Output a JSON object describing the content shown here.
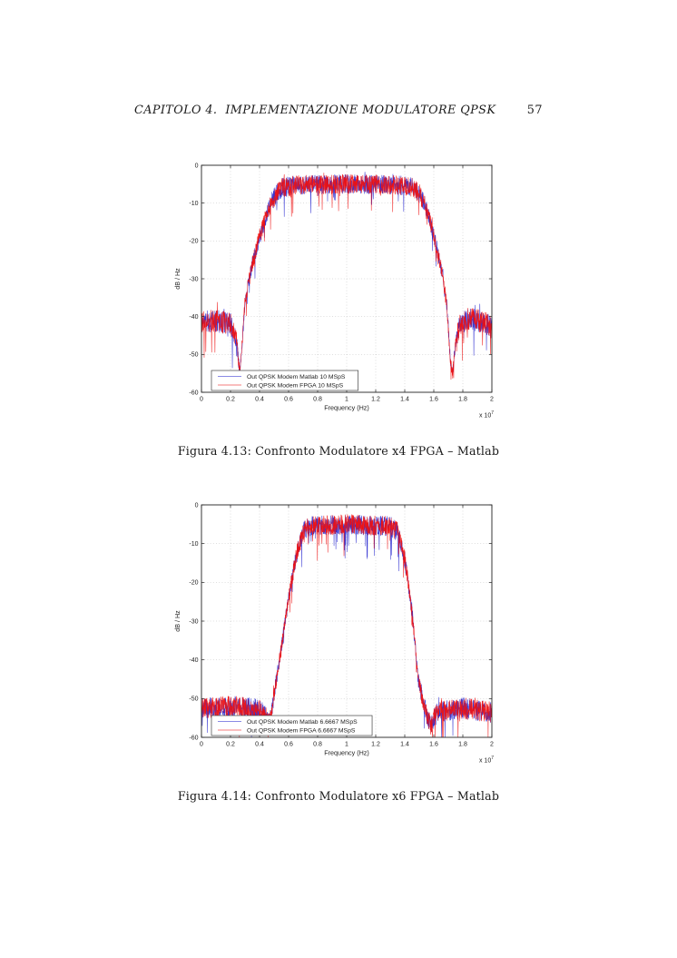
{
  "header": {
    "title": "CAPITOLO 4.  IMPLEMENTAZIONE MODULATORE QPSK",
    "page_number": "57"
  },
  "figures": [
    {
      "caption": "Figura 4.13: Confronto Modulatore x4 FPGA – Matlab"
    },
    {
      "caption": "Figura 4.14: Confronto Modulatore x6 FPGA – Matlab"
    }
  ],
  "chart_data": [
    {
      "type": "line",
      "title": "",
      "xlabel": "Frequency (Hz)",
      "ylabel": "dB / Hz",
      "x_multiplier_label": {
        "base": "x 10",
        "exponent": "7"
      },
      "xlim_units_1e7": [
        0,
        2
      ],
      "xlim_hz": [
        0,
        20000000
      ],
      "ylim": [
        -60,
        0
      ],
      "x_ticks": [
        "0",
        "0.2",
        "0.4",
        "0.6",
        "0.8",
        "1",
        "1.2",
        "1.4",
        "1.6",
        "1.8",
        "2"
      ],
      "y_ticks": [
        "0",
        "-10",
        "-20",
        "-30",
        "-40",
        "-50",
        "-60"
      ],
      "grid": true,
      "legend_position": "lower-left",
      "envelope_dB": [
        [
          0.0,
          -41.5,
          3.0
        ],
        [
          0.1,
          -41.0,
          3.0
        ],
        [
          0.2,
          -42.0,
          3.2
        ],
        [
          0.24,
          -46.0,
          2.5
        ],
        [
          0.265,
          -55.0,
          1.5
        ],
        [
          0.28,
          -47.0,
          1.5
        ],
        [
          0.3,
          -36.0,
          1.8
        ],
        [
          0.35,
          -26.0,
          2.0
        ],
        [
          0.4,
          -19.0,
          2.2
        ],
        [
          0.45,
          -13.0,
          2.4
        ],
        [
          0.5,
          -8.5,
          2.6
        ],
        [
          0.55,
          -6.0,
          2.6
        ],
        [
          0.65,
          -5.2,
          2.6
        ],
        [
          1.0,
          -5.0,
          2.6
        ],
        [
          1.35,
          -5.2,
          2.6
        ],
        [
          1.45,
          -5.8,
          2.6
        ],
        [
          1.5,
          -7.5,
          2.6
        ],
        [
          1.55,
          -11.5,
          2.4
        ],
        [
          1.6,
          -18.5,
          2.2
        ],
        [
          1.65,
          -27.0,
          2.0
        ],
        [
          1.69,
          -37.0,
          1.8
        ],
        [
          1.715,
          -52.0,
          1.5
        ],
        [
          1.73,
          -55.0,
          1.5
        ],
        [
          1.75,
          -47.0,
          2.2
        ],
        [
          1.78,
          -42.0,
          2.8
        ],
        [
          1.85,
          -40.5,
          3.0
        ],
        [
          1.95,
          -41.5,
          3.0
        ],
        [
          2.0,
          -43.0,
          3.0
        ]
      ],
      "series": [
        {
          "name": "Out QPSK Modem Matlab 10 MSpS",
          "color": "#2a2ad0",
          "seed": 11
        },
        {
          "name": "Out QPSK Modem FPGA 10 MSpS",
          "color": "#ee1111",
          "seed": 77
        }
      ]
    },
    {
      "type": "line",
      "title": "",
      "xlabel": "Frequency (Hz)",
      "ylabel": "dB / Hz",
      "x_multiplier_label": {
        "base": "x 10",
        "exponent": "7"
      },
      "xlim_units_1e7": [
        0,
        2
      ],
      "xlim_hz": [
        0,
        20000000
      ],
      "ylim": [
        -60,
        0
      ],
      "x_ticks": [
        "0",
        "0.2",
        "0.4",
        "0.6",
        "0.8",
        "1",
        "1.2",
        "1.4",
        "1.6",
        "1.8",
        "2"
      ],
      "y_ticks": [
        "0",
        "-10",
        "-20",
        "-30",
        "-40",
        "-50",
        "-60"
      ],
      "grid": true,
      "legend_position": "lower-left",
      "envelope_dB": [
        [
          0.0,
          -52.5,
          2.6
        ],
        [
          0.2,
          -52.0,
          2.8
        ],
        [
          0.4,
          -53.0,
          3.0
        ],
        [
          0.44,
          -55.0,
          3.0
        ],
        [
          0.47,
          -56.5,
          2.5
        ],
        [
          0.5,
          -49.0,
          2.0
        ],
        [
          0.55,
          -37.0,
          1.8
        ],
        [
          0.6,
          -24.0,
          2.0
        ],
        [
          0.65,
          -13.5,
          2.2
        ],
        [
          0.7,
          -7.0,
          2.6
        ],
        [
          0.75,
          -5.5,
          2.6
        ],
        [
          1.0,
          -5.0,
          2.6
        ],
        [
          1.3,
          -5.5,
          2.6
        ],
        [
          1.35,
          -7.0,
          2.6
        ],
        [
          1.4,
          -14.0,
          2.4
        ],
        [
          1.45,
          -27.5,
          2.0
        ],
        [
          1.49,
          -44.0,
          1.8
        ],
        [
          1.52,
          -50.0,
          2.2
        ],
        [
          1.55,
          -54.0,
          2.5
        ],
        [
          1.58,
          -57.0,
          2.5
        ],
        [
          1.62,
          -53.5,
          2.6
        ],
        [
          1.8,
          -52.5,
          2.8
        ],
        [
          2.0,
          -53.5,
          2.8
        ]
      ],
      "series": [
        {
          "name": "Out QPSK Modem Matlab 6.6667 MSpS",
          "color": "#2a2ad0",
          "seed": 23
        },
        {
          "name": "Out QPSK Modem FPGA 6.6667 MSpS",
          "color": "#ee1111",
          "seed": 91
        }
      ]
    }
  ]
}
